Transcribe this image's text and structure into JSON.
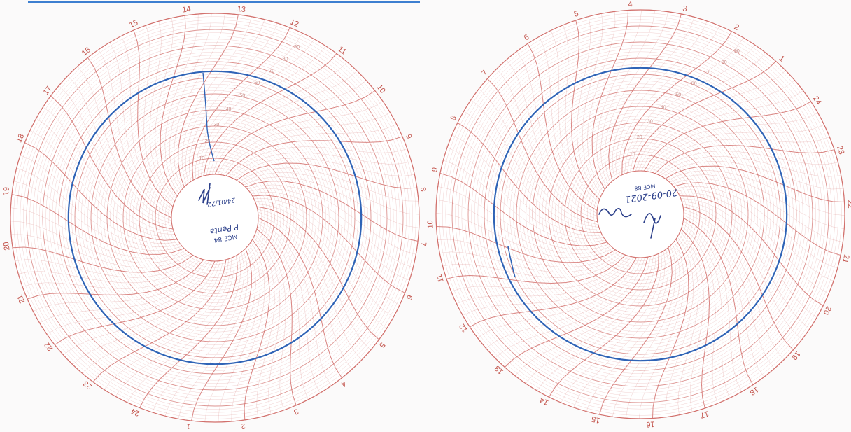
{
  "chart_data": [
    {
      "type": "circular-recorder",
      "chart_id": "left-disc",
      "hour_labels": [
        "1",
        "2",
        "3",
        "4",
        "5",
        "6",
        "7",
        "8",
        "9",
        "10",
        "11",
        "12",
        "13",
        "14",
        "15",
        "16",
        "17",
        "18",
        "19",
        "20",
        "21",
        "22",
        "23",
        "24"
      ],
      "ring_labels": [
        "10",
        "20",
        "30",
        "40",
        "50",
        "60",
        "70",
        "80",
        "90"
      ],
      "trace": {
        "level": 64,
        "range": [
          0,
          100
        ]
      },
      "center_text": [
        "MCE 84",
        "P Penta",
        "24/01/22"
      ],
      "colors": {
        "grid": "#d2706c",
        "trace": "#2f63b6",
        "paper": "#ffffff"
      }
    },
    {
      "type": "circular-recorder",
      "chart_id": "right-disc",
      "hour_labels": [
        "1",
        "2",
        "3",
        "4",
        "5",
        "6",
        "7",
        "8",
        "9",
        "10",
        "11",
        "12",
        "13",
        "14",
        "15",
        "16",
        "17",
        "18",
        "19",
        "20",
        "21",
        "22",
        "23",
        "24"
      ],
      "ring_labels": [
        "10",
        "20",
        "30",
        "40",
        "50",
        "60",
        "70",
        "80",
        "90"
      ],
      "trace": {
        "level": 64,
        "range": [
          0,
          100
        ]
      },
      "center_text": [
        "MCE 88",
        "20-09-2021"
      ],
      "colors": {
        "grid": "#d2706c",
        "trace": "#2f63b6",
        "paper": "#ffffff"
      }
    }
  ]
}
